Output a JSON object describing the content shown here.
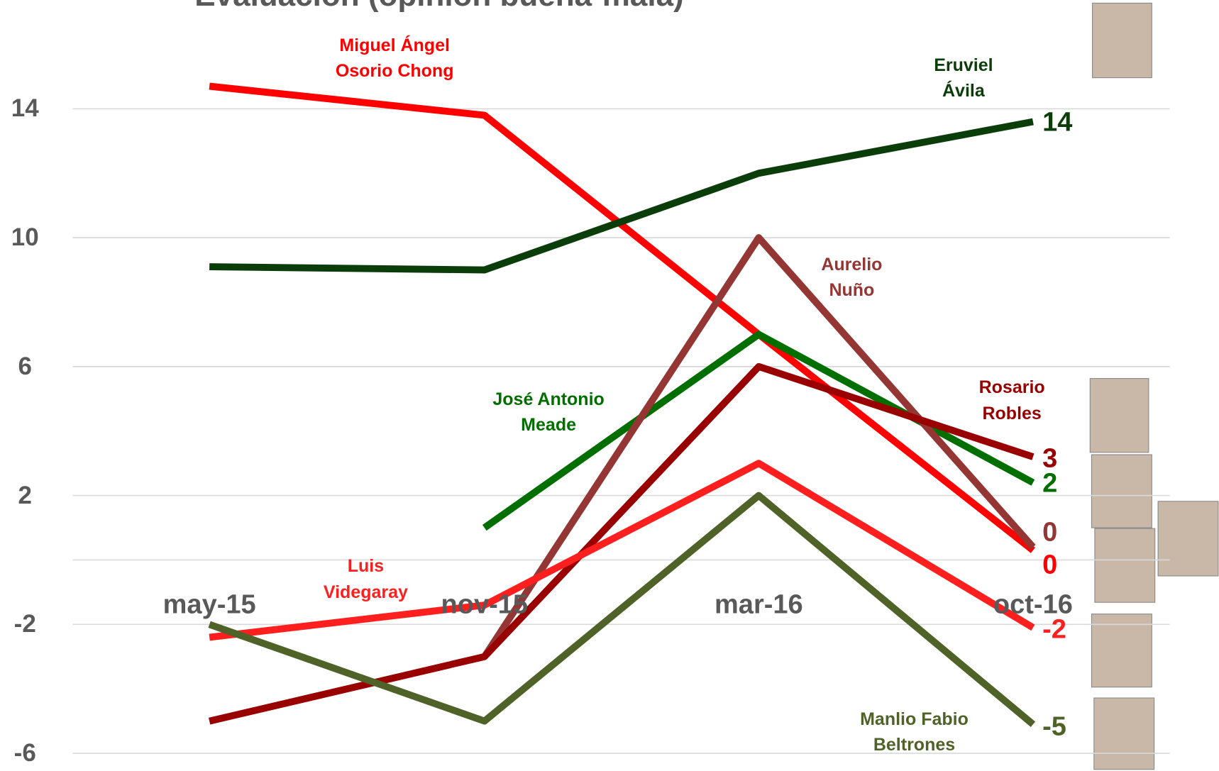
{
  "chart_data": {
    "type": "line",
    "title": "Evaluación (opinión buena-mala)",
    "categories": [
      "may-15",
      "nov-15",
      "mar-16",
      "oct-16"
    ],
    "ylim": [
      -6.5,
      17.4
    ],
    "yticks": [
      14,
      10,
      6,
      2,
      -2,
      -6
    ],
    "grid": true,
    "series": [
      {
        "name": "Miguel Ángel\nOsorio Chong",
        "color": "#ff0000",
        "values": [
          14.7,
          13.8,
          7,
          0.3
        ],
        "value_labels": [
          null,
          null,
          null,
          "0"
        ]
      },
      {
        "name": "Eruviel\nÁvila",
        "color": "#0b3d0b",
        "values": [
          9.1,
          9.0,
          12,
          13.6
        ],
        "value_labels": [
          null,
          null,
          null,
          "14"
        ]
      },
      {
        "name": "José Antonio\nMeade",
        "color": "#006f00",
        "values": [
          null,
          1,
          7,
          2.4
        ],
        "value_labels": [
          null,
          null,
          null,
          "2"
        ]
      },
      {
        "name": "Aurelio\nNuño",
        "color": "#943634",
        "values": [
          null,
          -3,
          10,
          0.4
        ],
        "value_labels": [
          null,
          null,
          null,
          "0"
        ]
      },
      {
        "name": "Rosario\nRobles",
        "color": "#990000",
        "values": [
          -5,
          -3,
          6,
          3.2
        ],
        "value_labels": [
          null,
          null,
          null,
          "3"
        ]
      },
      {
        "name": "Luis\nVidegaray",
        "color": "#ff1f1f",
        "values": [
          -2.4,
          -1.4,
          3,
          -2.1
        ],
        "value_labels": [
          null,
          null,
          null,
          "-2"
        ]
      },
      {
        "name": "Manlio Fabio\nBeltrones",
        "color": "#4f6228",
        "values": [
          -2,
          -5,
          2,
          -5.1
        ],
        "value_labels": [
          null,
          null,
          null,
          "-5"
        ]
      }
    ]
  }
}
